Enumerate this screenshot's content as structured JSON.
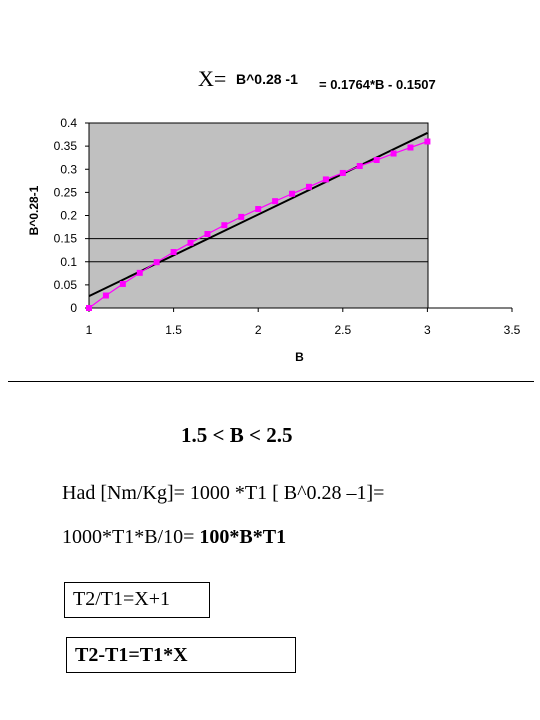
{
  "header": {
    "x_label": "X=",
    "rhs_label": "B^0.28 -1",
    "fit_label": "= 0.1764*B - 0.1507"
  },
  "chart_data": {
    "type": "scatter",
    "xlabel": "B",
    "ylabel": "B^0.28-1",
    "xlim": [
      1,
      3.5
    ],
    "ylim": [
      0,
      0.4
    ],
    "x_ticks": [
      "1",
      "1.5",
      "2",
      "2.5",
      "3",
      "3.5"
    ],
    "y_ticks": [
      "0",
      "0.05",
      "0.1",
      "0.15",
      "0.2",
      "0.25",
      "0.3",
      "0.35",
      "0.4"
    ],
    "grid": true,
    "grid_lines_y": [
      0.1,
      0.15
    ],
    "plot_background": "#c0c0c0",
    "series": [
      {
        "kind": "markers-with-line",
        "color": "#ff00ff",
        "x": [
          1.0,
          1.1,
          1.2,
          1.3,
          1.4,
          1.5,
          1.6,
          1.7,
          1.8,
          1.9,
          2.0,
          2.1,
          2.2,
          2.3,
          2.4,
          2.5,
          2.6,
          2.7,
          2.8,
          2.9,
          3.0
        ],
        "y": [
          0.0,
          0.027,
          0.052,
          0.076,
          0.099,
          0.121,
          0.141,
          0.16,
          0.179,
          0.197,
          0.214,
          0.231,
          0.247,
          0.262,
          0.278,
          0.292,
          0.307,
          0.32,
          0.334,
          0.347,
          0.36
        ]
      },
      {
        "kind": "trendline",
        "color": "#000000",
        "slope": 0.1764,
        "intercept": -0.1507,
        "x_range": [
          1,
          3
        ]
      }
    ]
  },
  "content": {
    "range": "1.5 < B < 2.5",
    "had_line1": "Had [Nm/Kg]= 1000 *T1 [ B^0.28 –1]=",
    "had_line2_plain": "1000*T1*B/10= ",
    "had_line2_bold": "100*B*T1",
    "box1": "T2/T1=X+1",
    "box2": "T2-T1=T1*X"
  }
}
